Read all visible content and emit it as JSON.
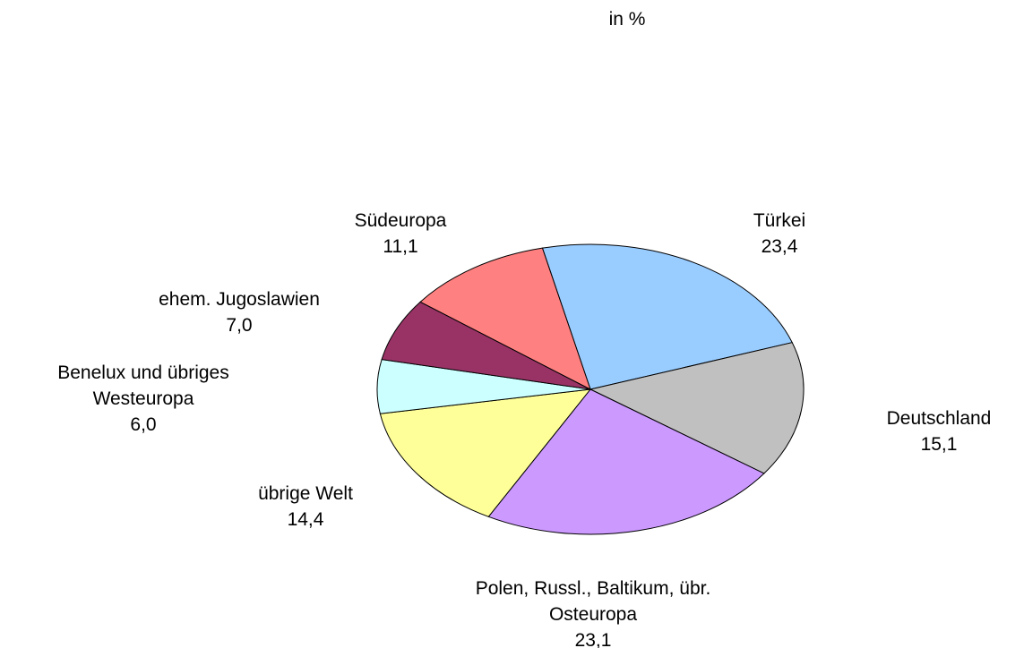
{
  "chart_data": {
    "type": "pie",
    "title": "in %",
    "categories": [
      "Türkei",
      "Deutschland",
      "Polen, Russl., Baltikum, übr. Osteuropa",
      "übrige Welt",
      "Benelux und übriges Westeuropa",
      "ehem. Jugoslawien",
      "Südeuropa"
    ],
    "values": [
      23.4,
      15.1,
      23.1,
      14.4,
      6.0,
      7.0,
      11.1
    ],
    "value_labels": [
      "23,4",
      "15,1",
      "23,1",
      "14,4",
      "6,0",
      "7,0",
      "11,1"
    ],
    "colors": [
      "#99ccff",
      "#c0c0c0",
      "#cc99ff",
      "#ffff99",
      "#ccffff",
      "#993366",
      "#ff8080"
    ]
  }
}
